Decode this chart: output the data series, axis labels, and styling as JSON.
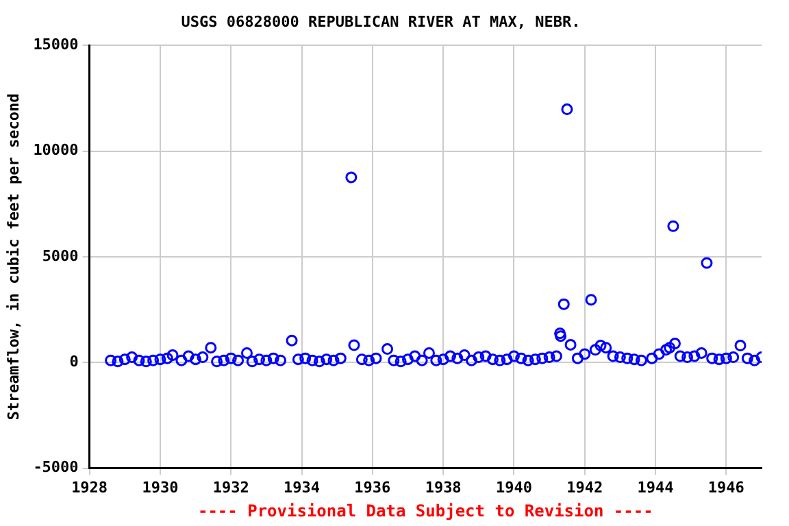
{
  "chart_data": {
    "type": "scatter",
    "title": "USGS 06828000 REPUBLICAN RIVER AT MAX, NEBR.",
    "ylabel": "Streamflow, in cubic feet per second",
    "annotations": [
      "---- Provisional Data Subject to Revision ----"
    ],
    "x": [
      1928.6,
      1928.8,
      1929.0,
      1929.2,
      1929.4,
      1929.6,
      1929.8,
      1930.0,
      1930.2,
      1930.35,
      1930.6,
      1930.8,
      1931.0,
      1931.2,
      1931.43,
      1931.6,
      1931.8,
      1932.0,
      1932.2,
      1932.45,
      1932.6,
      1932.8,
      1933.0,
      1933.2,
      1933.4,
      1933.72,
      1933.9,
      1934.1,
      1934.3,
      1934.5,
      1934.7,
      1934.9,
      1935.1,
      1935.4,
      1935.48,
      1935.7,
      1935.9,
      1936.1,
      1936.42,
      1936.6,
      1936.8,
      1937.0,
      1937.2,
      1937.4,
      1937.6,
      1937.8,
      1938.0,
      1938.2,
      1938.4,
      1938.6,
      1938.8,
      1939.0,
      1939.2,
      1939.4,
      1939.6,
      1939.8,
      1940.0,
      1940.2,
      1940.4,
      1940.6,
      1940.8,
      1941.0,
      1941.2,
      1941.3,
      1941.32,
      1941.41,
      1941.5,
      1941.6,
      1941.8,
      1942.0,
      1942.18,
      1942.3,
      1942.45,
      1942.6,
      1942.8,
      1943.0,
      1943.2,
      1943.4,
      1943.6,
      1943.9,
      1944.1,
      1944.3,
      1944.4,
      1944.5,
      1944.55,
      1944.7,
      1944.9,
      1945.1,
      1945.3,
      1945.45,
      1945.6,
      1945.8,
      1946.0,
      1946.2,
      1946.4,
      1946.6,
      1946.8,
      1947.0
    ],
    "series": [
      {
        "color": "#0000ff",
        "values": [
          100,
          50,
          150,
          250,
          100,
          50,
          100,
          150,
          200,
          350,
          100,
          300,
          150,
          250,
          700,
          50,
          100,
          200,
          100,
          450,
          50,
          150,
          100,
          200,
          100,
          1040,
          150,
          200,
          100,
          50,
          150,
          100,
          200,
          8760,
          820,
          150,
          100,
          200,
          640,
          100,
          50,
          150,
          300,
          100,
          450,
          100,
          150,
          300,
          200,
          350,
          100,
          250,
          300,
          150,
          100,
          150,
          300,
          200,
          100,
          150,
          200,
          250,
          300,
          1380,
          1250,
          2760,
          11980,
          840,
          200,
          400,
          2970,
          600,
          800,
          700,
          300,
          250,
          200,
          150,
          100,
          200,
          400,
          600,
          700,
          6450,
          900,
          300,
          250,
          300,
          450,
          4710,
          200,
          150,
          200,
          250,
          800,
          200,
          100,
          250
        ]
      }
    ],
    "xlim": [
      1928,
      1947
    ],
    "xticks": [
      1928,
      1930,
      1932,
      1934,
      1936,
      1938,
      1940,
      1942,
      1944,
      1946
    ],
    "ylim": [
      -5000,
      15000
    ],
    "yticks": [
      -5000,
      0,
      5000,
      10000,
      15000
    ],
    "grid": true,
    "legend": false,
    "marker": "circle"
  }
}
